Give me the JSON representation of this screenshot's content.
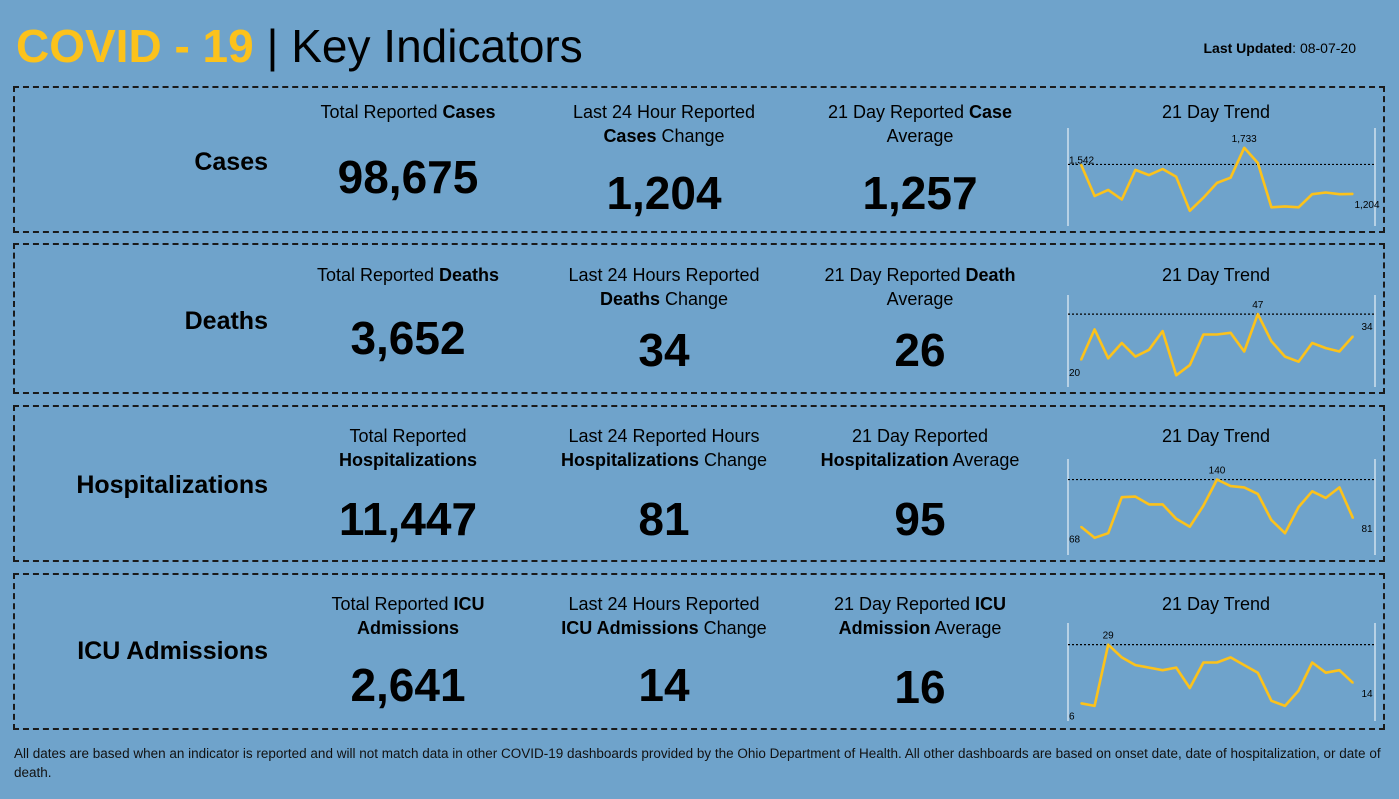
{
  "header": {
    "title_highlight": "COVID - 19",
    "title_sep": " | ",
    "title_rest": "Key Indicators",
    "updated_label": "Last Updated",
    "updated_value": ": 08-07-20"
  },
  "trend_title": "21 Day Trend",
  "colors": {
    "background": "#6fa3cb",
    "accent": "#fcc21b",
    "line": "#fcc21b"
  },
  "rows": [
    {
      "label": "Cases",
      "c1": {
        "pre": "Total Reported ",
        "bold": "Cases",
        "post": ""
      },
      "c2": {
        "l1": "Last 24 Hour Reported",
        "bold": "Cases",
        "post": " Change"
      },
      "c3": {
        "pre": "21 Day Reported ",
        "bold": "Case",
        "l2": "Average"
      },
      "total": "98,675",
      "change": "1,204",
      "average": "1,257"
    },
    {
      "label": "Deaths",
      "c1": {
        "pre": "Total Reported ",
        "bold": "Deaths",
        "post": ""
      },
      "c2": {
        "l1": "Last 24 Hours Reported",
        "bold": "Deaths",
        "post": " Change"
      },
      "c3": {
        "pre": "21 Day Reported ",
        "bold": "Death",
        "l2": "Average"
      },
      "total": "3,652",
      "change": "34",
      "average": "26"
    },
    {
      "label": "Hospitalizations",
      "c1": {
        "l1": "Total Reported",
        "bold": "Hospitalizations"
      },
      "c2": {
        "l1": "Last 24 Reported Hours",
        "bold": "Hospitalizations",
        "post": " Change"
      },
      "c3": {
        "l1": "21 Day Reported",
        "bold": "Hospitalization",
        "post": " Average"
      },
      "total": "11,447",
      "change": "81",
      "average": "95"
    },
    {
      "label": "ICU Admissions",
      "c1": {
        "pre": "Total Reported ",
        "bold": "ICU",
        "l2bold": "Admissions"
      },
      "c2": {
        "l1": "Last 24 Hours Reported",
        "bold": "ICU Admissions",
        "post": " Change"
      },
      "c3": {
        "pre": "21 Day Reported ",
        "bold": "ICU",
        "l2bold": "Admission",
        "l2post": " Average"
      },
      "total": "2,641",
      "change": "14",
      "average": "16"
    }
  ],
  "chart_data": [
    {
      "type": "line",
      "title": "21 Day Trend",
      "series_name": "Cases",
      "values": [
        1542,
        1180,
        1250,
        1140,
        1480,
        1420,
        1490,
        1400,
        1010,
        1160,
        1330,
        1390,
        1733,
        1560,
        1050,
        1060,
        1050,
        1200,
        1220,
        1200,
        1204
      ],
      "labels": {
        "first": "1,542",
        "max": "1,733",
        "last": "1,204"
      },
      "ylim": [
        950,
        1800
      ],
      "reference_line": 1542
    },
    {
      "type": "line",
      "title": "21 Day Trend",
      "series_name": "Deaths",
      "values": [
        20,
        38,
        21,
        30,
        22,
        26,
        37,
        11,
        17,
        35,
        35,
        36,
        25,
        47,
        31,
        22,
        19,
        30,
        27,
        25,
        34
      ],
      "labels": {
        "first": "20",
        "max": "47",
        "last": "34"
      },
      "ylim": [
        10,
        50
      ],
      "reference_line": 47
    },
    {
      "type": "line",
      "title": "21 Day Trend",
      "series_name": "Hospitalizations",
      "values": [
        68,
        51,
        58,
        113,
        114,
        102,
        102,
        80,
        68,
        100,
        140,
        130,
        128,
        118,
        78,
        58,
        98,
        122,
        112,
        128,
        81
      ],
      "labels": {
        "first": "68",
        "max": "140",
        "last": "81"
      },
      "ylim": [
        40,
        150
      ],
      "reference_line": 140
    },
    {
      "type": "line",
      "title": "21 Day Trend",
      "series_name": "ICU Admissions",
      "values": [
        6,
        5,
        29,
        24,
        21,
        20,
        19,
        20,
        12,
        22,
        22,
        24,
        21,
        18,
        7,
        5,
        11,
        22,
        18,
        19,
        14
      ],
      "labels": {
        "first": "6",
        "max": "29",
        "last": "14"
      },
      "ylim": [
        3,
        32
      ],
      "reference_line": 29
    }
  ],
  "footnote": "All dates are based when an indicator is reported and will not match data in other COVID-19 dashboards provided by the Ohio Department of Health. All other dashboards are based on onset date, date of hospitalization, or date of death."
}
